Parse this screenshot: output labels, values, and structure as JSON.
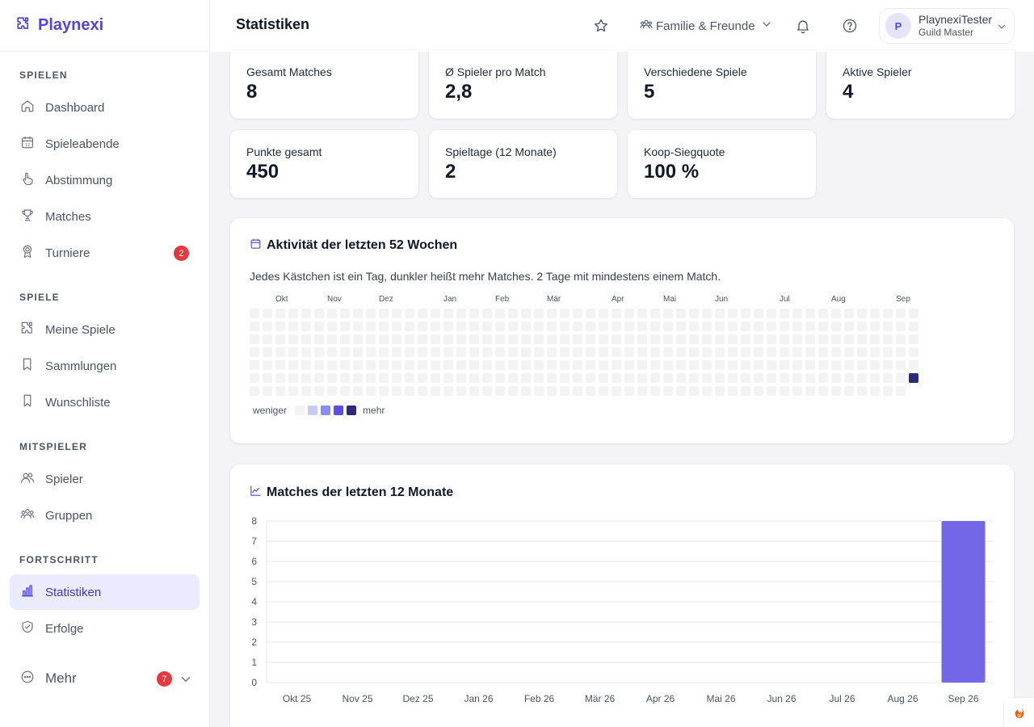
{
  "brand": {
    "name": "Playnexi",
    "color": "#4f46e5"
  },
  "header": {
    "title": "Statistiken",
    "group_selector": "Familie & Freunde",
    "user": {
      "initial": "P",
      "name": "PlaynexiTester",
      "role": "Guild Master"
    },
    "icons": [
      "star-icon",
      "bell-icon",
      "help-icon"
    ]
  },
  "sidebar": {
    "sections": [
      {
        "title": "SPIELEN",
        "items": [
          {
            "label": "Dashboard",
            "icon": "home-icon"
          },
          {
            "label": "Spieleabende",
            "icon": "calendar-icon"
          },
          {
            "label": "Abstimmung",
            "icon": "hand-pointer-icon"
          },
          {
            "label": "Matches",
            "icon": "trophy-icon"
          },
          {
            "label": "Turniere",
            "icon": "medal-icon",
            "badge": "2"
          }
        ]
      },
      {
        "title": "SPIELE",
        "items": [
          {
            "label": "Meine Spiele",
            "icon": "puzzle-icon"
          },
          {
            "label": "Sammlungen",
            "icon": "collection-icon"
          },
          {
            "label": "Wunschliste",
            "icon": "bookmark-icon"
          }
        ]
      },
      {
        "title": "MITSPIELER",
        "items": [
          {
            "label": "Spieler",
            "icon": "users-icon"
          },
          {
            "label": "Gruppen",
            "icon": "group-icon"
          }
        ]
      },
      {
        "title": "FORTSCHRITT",
        "items": [
          {
            "label": "Statistiken",
            "icon": "bar-chart-icon",
            "active": true
          },
          {
            "label": "Erfolge",
            "icon": "shield-check-icon"
          }
        ]
      }
    ],
    "more": {
      "label": "Mehr",
      "badge": "7"
    }
  },
  "stats": [
    {
      "label": "Gesamt Matches",
      "value": "8"
    },
    {
      "label": "Ø Spieler pro Match",
      "value": "2,8"
    },
    {
      "label": "Verschiedene Spiele",
      "value": "5"
    },
    {
      "label": "Aktive Spieler",
      "value": "4"
    },
    {
      "label": "Punkte gesamt",
      "value": "450"
    },
    {
      "label": "Spieltage (12 Monate)",
      "value": "2"
    },
    {
      "label": "Koop-Siegquote",
      "value": "100 %"
    }
  ],
  "heatmap": {
    "title": "Aktivität der letzten 52 Wochen",
    "description": "Jedes Kästchen ist ein Tag, dunkler heißt mehr Matches. 2 Tage mit mindestens einem Match.",
    "months": [
      "Okt",
      "Nov",
      "Dez",
      "Jan",
      "Feb",
      "Mär",
      "Apr",
      "Mai",
      "Jun",
      "Jul",
      "Aug",
      "Sep"
    ],
    "legend_less": "weniger",
    "legend_more": "mehr",
    "scale_colors": [
      "#f3f3f5",
      "#c7c9f7",
      "#8b8cf0",
      "#5a4fe0",
      "#2e2a7a"
    ]
  },
  "chart_data": {
    "type": "bar",
    "title": "Matches der letzten 12 Monate",
    "categories": [
      "Okt 25",
      "Nov 25",
      "Dez 25",
      "Jan 26",
      "Feb 26",
      "Mär 26",
      "Apr 26",
      "Mai 26",
      "Jun 26",
      "Jul 26",
      "Aug 26",
      "Sep 26"
    ],
    "values": [
      0,
      0,
      0,
      0,
      0,
      0,
      0,
      0,
      0,
      0,
      0,
      8
    ],
    "ylim": [
      0,
      8
    ],
    "yticks": [
      0,
      1,
      2,
      3,
      4,
      5,
      6,
      7,
      8
    ],
    "grid": true,
    "bar_color": "#7367e8"
  }
}
